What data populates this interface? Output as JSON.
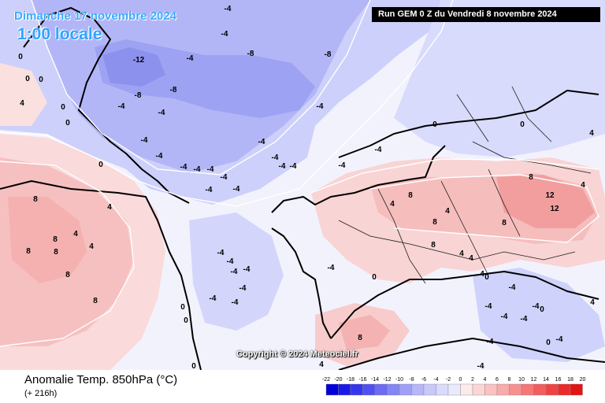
{
  "header": {
    "date_title": "Dimanche 17 novembre 2024",
    "time_title": "1:00 locale",
    "run_info": "Run GEM 0 Z du Vendredi 8 novembre 2024"
  },
  "map": {
    "copyright": "Copyright © 2024 Meteociel.fr",
    "isotherm_labels": [
      "-12",
      "-8",
      "-8",
      "-8",
      "-8",
      "-4",
      "-4",
      "-4",
      "-4",
      "-4",
      "-4",
      "-4",
      "-4",
      "-4",
      "-4",
      "-4",
      "-4",
      "-4",
      "-4",
      "-4",
      "-4",
      "-4",
      "-4",
      "-4",
      "-4",
      "-4",
      "-4",
      "-4",
      "-4",
      "-4",
      "-4",
      "-4",
      "-4",
      "-4",
      "-4",
      "-4",
      "-4",
      "-4",
      "-4",
      "-4",
      "-4",
      "0",
      "0",
      "0",
      "0",
      "0",
      "0",
      "0",
      "0",
      "0",
      "0",
      "0",
      "0",
      "0",
      "0",
      "0",
      "4",
      "4",
      "4",
      "4",
      "4",
      "4",
      "4",
      "4",
      "4",
      "4",
      "4",
      "4",
      "4",
      "8",
      "8",
      "8",
      "8",
      "8",
      "8",
      "8",
      "8",
      "8",
      "8",
      "8",
      "8",
      "12",
      "12"
    ]
  },
  "footer": {
    "parameter": "Anomalie Temp. 850hPa (°C)",
    "lead_time": "(+ 216h)"
  },
  "legend": {
    "ticks": [
      "-22",
      "-20",
      "-18",
      "-16",
      "-14",
      "-12",
      "-10",
      "-8",
      "-6",
      "-4",
      "-2",
      "0",
      "2",
      "4",
      "6",
      "8",
      "10",
      "12",
      "14",
      "16",
      "18",
      "20"
    ],
    "colors": [
      "#0000d8",
      "#1a1ae6",
      "#3535ee",
      "#5050f2",
      "#6b6bf4",
      "#8585f6",
      "#9f9ff7",
      "#b6b6f8",
      "#c8c8fa",
      "#dadafc",
      "#eaeafd",
      "#fdeaea",
      "#fcd6d6",
      "#fbc2c2",
      "#f9aaaa",
      "#f79191",
      "#f57777",
      "#f25d5d",
      "#ef4343",
      "#eb2a2a",
      "#e31414"
    ]
  },
  "colors": {
    "cold_deep": "#8f93ee",
    "cold_mid": "#aeb0f5",
    "cold_light": "#cfd1fb",
    "neutral": "#f3f3fe",
    "warm_light": "#fadcdc",
    "warm_mid": "#f6bcbc",
    "warm_deep": "#f19a9a",
    "title_blue": "#39a9ff"
  }
}
